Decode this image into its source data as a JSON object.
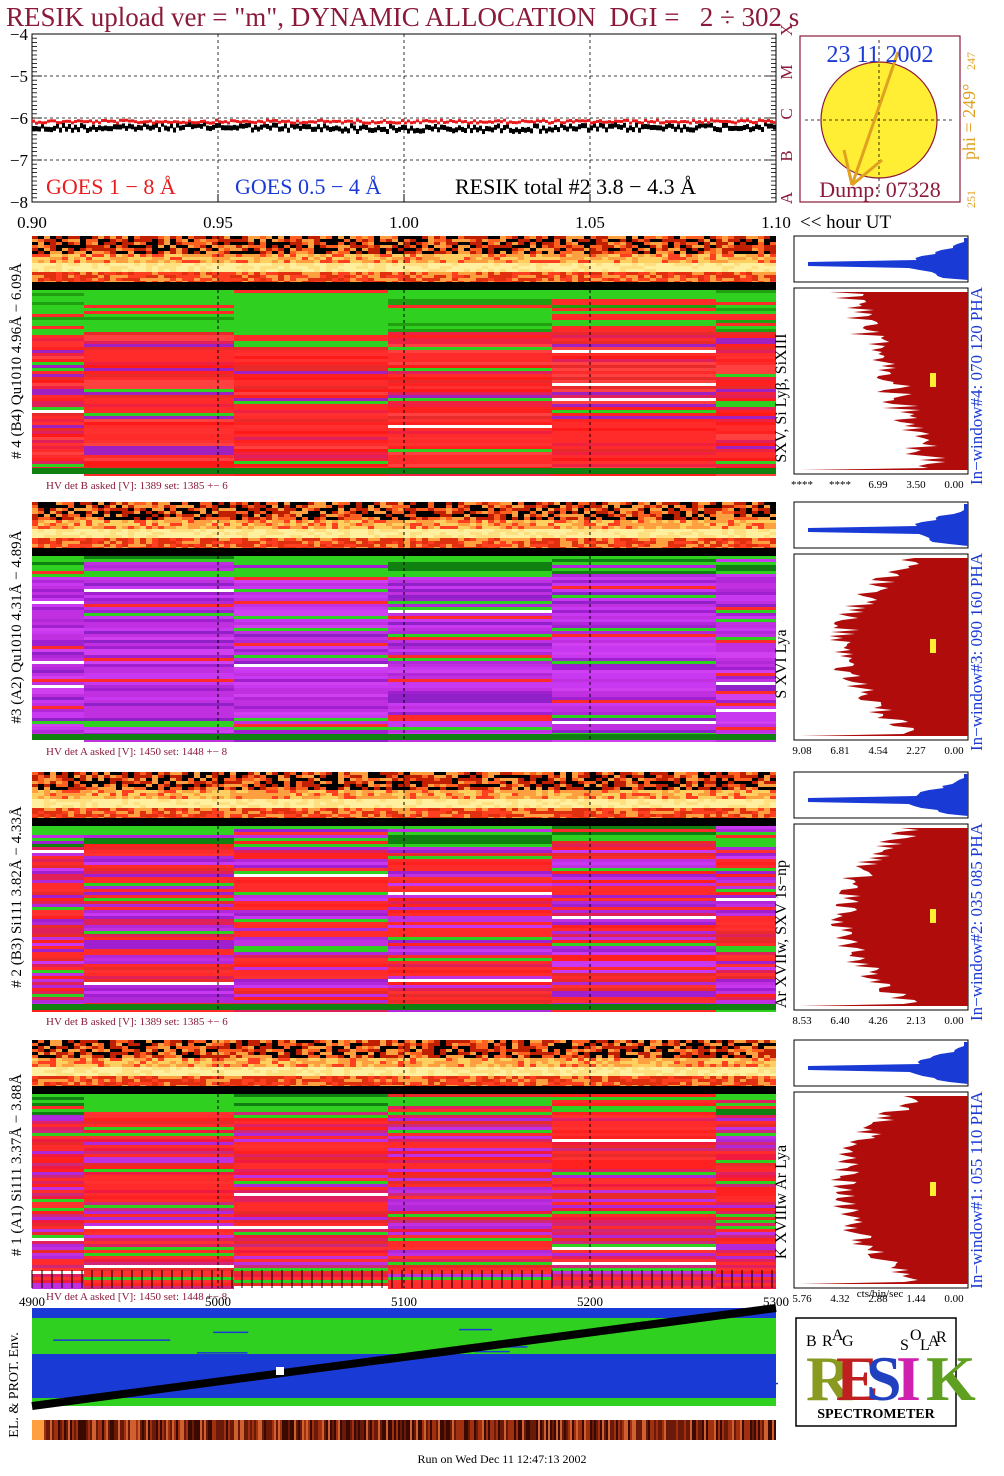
{
  "header": {
    "title": "RESIK upload ver = \"m\", DYNAMIC ALLOCATION  DGI =   2 ÷ 302 s"
  },
  "goes_panel": {
    "y_ticks": [
      "−4",
      "−5",
      "−6",
      "−7",
      "−8"
    ],
    "legend_goes_long": "GOES 1 − 8 Å",
    "legend_goes_short": "GOES 0.5 − 4 Å",
    "legend_resik": "RESIK total #2  3.8 − 4.3 Å",
    "goes_class_letters": [
      "X",
      "M",
      "C",
      "B",
      "A"
    ],
    "x_ticks": [
      "0.90",
      "0.95",
      "1.00",
      "1.05",
      "1.10"
    ],
    "x_axis_label": "<< hour UT",
    "colors": {
      "goes_long": "#e81c1c",
      "goes_short": "#1a3ad6",
      "resik": "#000000"
    }
  },
  "solar_disk": {
    "date": "23 11 2002",
    "phi_label": "phi = 249°",
    "phi_superscript": "247",
    "phi_low": "251",
    "dump": "Dump: 07328",
    "colors": {
      "disk": "#ffee33",
      "frame": "#8b1a3a",
      "arrow": "#e0a020"
    }
  },
  "channels": [
    {
      "side_label": "# 4 (B4) Qu1010 4.96Å − 6.09Å",
      "lines_label": "SXV, Si Lyβ, SiXIII",
      "window_label": "In−window#4:  070 120 PHA",
      "hv_label": "HV det B asked [V]:  1389 set:  1385 +−    6",
      "hist_ticks": [
        "****",
        "****",
        "6.99",
        "3.50",
        "0.00"
      ],
      "palette": "red"
    },
    {
      "side_label": "#3 (A2) Qu1010  4.31Å − 4.89Å",
      "lines_label": "S XVI Lya",
      "window_label": "In−window#3:  090 160 PHA",
      "hv_label": "HV det A asked [V]:  1450 set:  1448 +−    8",
      "hist_ticks": [
        "9.08",
        "6.81",
        "4.54",
        "2.27",
        "0.00"
      ],
      "palette": "purple"
    },
    {
      "side_label": "# 2 (B3) Si111  3.82Å − 4.33Å",
      "lines_label": "Ar XVIIw,  SXV 1s−np",
      "window_label": "In−window#2:  035 085 PHA",
      "hv_label": "HV det B asked [V]:  1389 set:  1385 +−    6",
      "hist_ticks": [
        "8.53",
        "6.40",
        "4.26",
        "2.13",
        "0.00"
      ],
      "palette": "mixed"
    },
    {
      "side_label": "# 1 (A1) Si111  3.37Å − 3.88Å",
      "lines_label": "K XVIIIw  Ar Lya",
      "window_label": "In−window#1:  055 110 PHA",
      "hv_label": "HV det A asked [V]:  1450 set:  1448 +−    8",
      "hist_ticks": [
        "5.76",
        "4.32",
        "2.88",
        "1.44",
        "0.00"
      ],
      "palette": "mixed2"
    }
  ],
  "bottom_panel": {
    "x_ticks": [
      "4900",
      "5000",
      "5100",
      "5200",
      "5300"
    ],
    "y_label": "EL. & PROT. Env.",
    "hist_unit": "cts/bin/sec"
  },
  "logo": {
    "letters_big": "RESIK",
    "letters_small": [
      "B",
      "R",
      "A",
      "G",
      "S",
      "O",
      "L",
      "A",
      "R"
    ],
    "subtitle": "SPECTROMETER"
  },
  "footer": {
    "run_on": "Run on Wed Dec 11 12:47:13 2002"
  },
  "chart_data": [
    {
      "type": "line",
      "title": "RESIK upload ver = \"m\", DYNAMIC ALLOCATION  DGI =   2 ÷ 302 s",
      "xlabel": "<< hour UT",
      "ylabel": "",
      "xlim": [
        0.9,
        1.1
      ],
      "ylim": [
        -8,
        -4
      ],
      "x_ticks": [
        0.9,
        0.95,
        1.0,
        1.05,
        1.1
      ],
      "y_ticks": [
        -4,
        -5,
        -6,
        -7,
        -8
      ],
      "grid": true,
      "legend": "bottom",
      "series": [
        {
          "name": "GOES 1 − 8 Å",
          "x": [
            0.9,
            0.95,
            1.0,
            1.05,
            1.1
          ],
          "values": [
            -6.1,
            -6.1,
            -6.1,
            -6.1,
            -6.1
          ]
        },
        {
          "name": "RESIK total #2  3.8 − 4.3 Å",
          "x": [
            0.9,
            0.95,
            1.0,
            1.05,
            1.1
          ],
          "values": [
            -6.25,
            -6.22,
            -6.28,
            -6.25,
            -6.22
          ]
        }
      ]
    },
    {
      "type": "line",
      "xlabel": "",
      "ylabel": "EL. & PROT. Env.",
      "xlim": [
        4900,
        5300
      ],
      "x_ticks": [
        4900,
        5000,
        5100,
        5200,
        5300
      ],
      "series": [
        {
          "x": [
            4900,
            5300
          ],
          "values": [
            0.0,
            1.0
          ]
        }
      ]
    }
  ]
}
